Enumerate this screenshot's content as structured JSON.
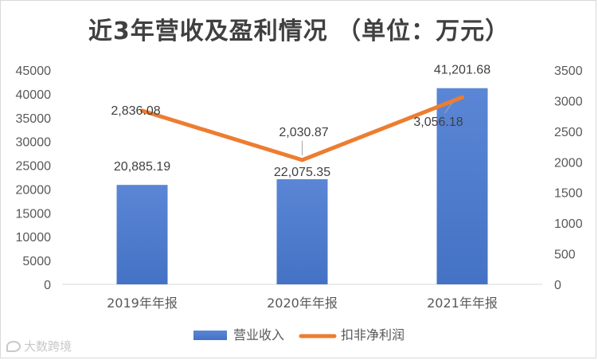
{
  "chart_data": {
    "type": "bar",
    "title": "近3年营收及盈利情况 （单位：万元）",
    "categories": [
      "2019年年报",
      "2020年年报",
      "2021年年报"
    ],
    "series": [
      {
        "name": "营业收入",
        "type": "bar",
        "axis": "left",
        "color": "#4472c4",
        "values": [
          20885.19,
          22075.35,
          41201.68
        ],
        "labels": [
          "20,885.19",
          "22,075.35",
          "41,201.68"
        ]
      },
      {
        "name": "扣非净利润",
        "type": "line",
        "axis": "right",
        "color": "#ed7d31",
        "values": [
          2836.08,
          2030.87,
          3056.18
        ],
        "labels": [
          "2,836.08",
          "2,030.87",
          "3,056.18"
        ]
      }
    ],
    "y_left": {
      "ylim": [
        0,
        45000
      ],
      "ticks": [
        "0",
        "5000",
        "10000",
        "15000",
        "20000",
        "25000",
        "30000",
        "35000",
        "40000",
        "45000"
      ]
    },
    "y_right": {
      "ylim": [
        0,
        3500
      ],
      "ticks": [
        "0",
        "500",
        "1000",
        "1500",
        "2000",
        "2500",
        "3000",
        "3500"
      ]
    },
    "xlabel": "",
    "ylabel": "",
    "grid": false,
    "legend_position": "bottom"
  },
  "watermark": "大数跨境"
}
